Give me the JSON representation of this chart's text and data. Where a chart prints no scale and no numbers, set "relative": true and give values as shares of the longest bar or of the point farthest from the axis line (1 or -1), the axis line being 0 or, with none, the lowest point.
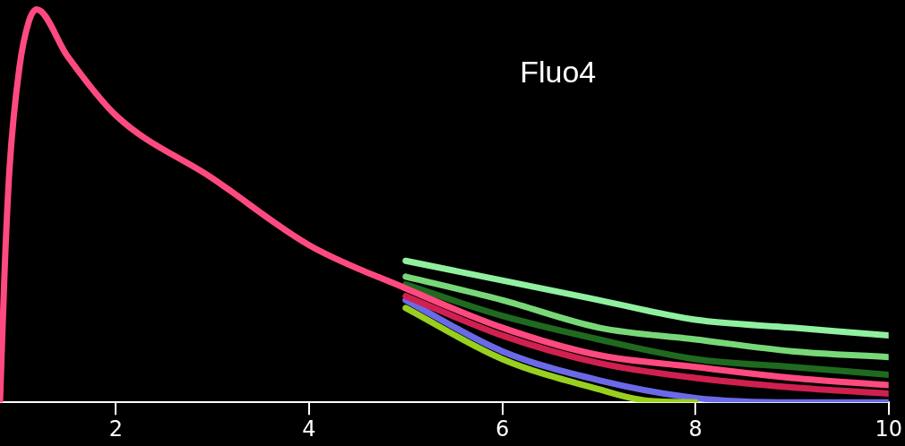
{
  "chart_data": {
    "type": "line",
    "relative": true,
    "annotations": [
      "Fluo4"
    ],
    "xlim": [
      0.8,
      10
    ],
    "xticks": [
      2,
      4,
      6,
      8,
      10
    ],
    "grid": false,
    "legend": false,
    "marker": "none",
    "line_style": "solid",
    "series": [
      {
        "color": "#90f0a0",
        "x": [
          5,
          6,
          7,
          8,
          9,
          10
        ],
        "values": [
          0.36,
          0.31,
          0.26,
          0.21,
          0.19,
          0.17
        ]
      },
      {
        "color": "#78d878",
        "x": [
          5,
          6,
          7,
          8,
          9,
          10
        ],
        "values": [
          0.32,
          0.26,
          0.19,
          0.16,
          0.13,
          0.115
        ]
      },
      {
        "color": "#1f6a1f",
        "x": [
          5,
          6,
          7,
          8,
          9,
          10
        ],
        "values": [
          0.3,
          0.22,
          0.16,
          0.11,
          0.09,
          0.07
        ]
      },
      {
        "color": "#6a6ae8",
        "x": [
          5,
          6,
          7,
          8,
          9,
          10
        ],
        "values": [
          0.26,
          0.13,
          0.056,
          0.011,
          0,
          0
        ]
      },
      {
        "color": "#98d020",
        "x": [
          5,
          6,
          7,
          7.5,
          8
        ],
        "values": [
          0.24,
          0.11,
          0.033,
          0.004,
          0
        ]
      },
      {
        "color": "#d02050",
        "x": [
          5,
          6,
          7,
          8,
          9,
          10
        ],
        "values": [
          0.27,
          0.17,
          0.1,
          0.062,
          0.038,
          0.022
        ]
      },
      {
        "color": "#ff4a80",
        "x": [
          0.8,
          0.85,
          0.9,
          1.0,
          1.1,
          1.18,
          1.5,
          2,
          3,
          4,
          5,
          6,
          7,
          8,
          9,
          10
        ],
        "values": [
          0,
          0.35,
          0.6,
          0.85,
          0.97,
          1,
          0.88,
          0.73,
          0.57,
          0.4,
          0.29,
          0.19,
          0.12,
          0.09,
          0.062,
          0.044
        ]
      }
    ]
  }
}
